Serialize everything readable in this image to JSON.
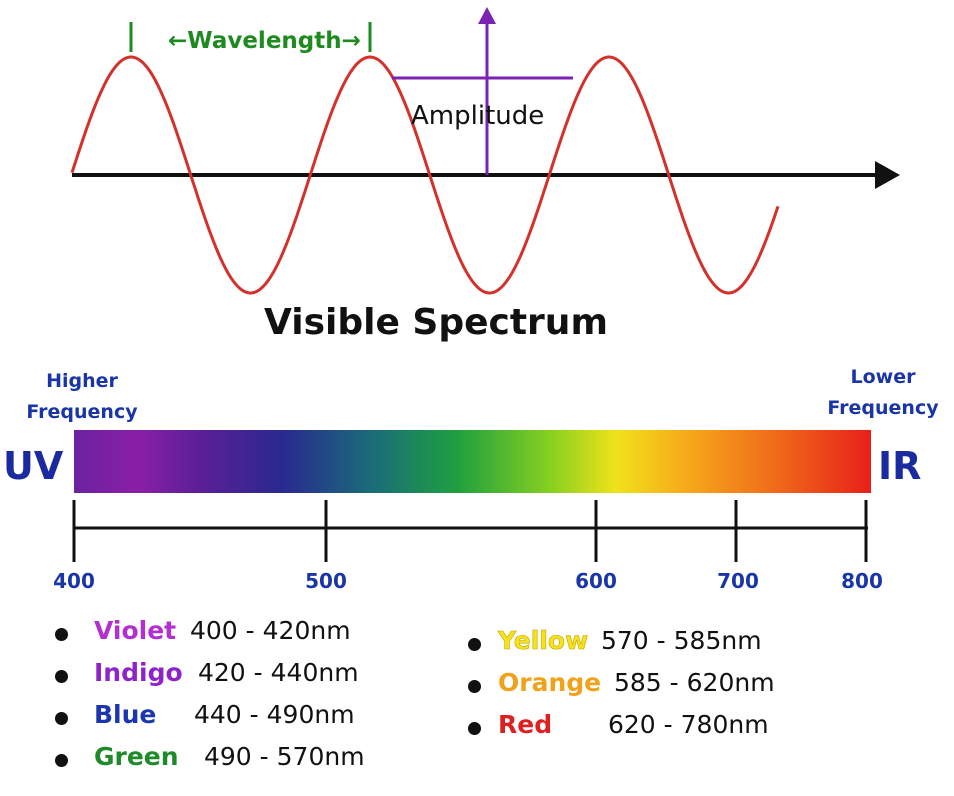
{
  "wave": {
    "wavelength_label": "←Wavelength→",
    "amplitude_label": "Amplitude",
    "wave_color": "#d3322b",
    "wavelength_color": "#1f8a1f",
    "amplitude_color": "#7b22b5"
  },
  "title": "Visible Spectrum",
  "spectrum": {
    "left_label": "Higher Frequency",
    "right_label": "Lower Frequency",
    "left_end": "UV",
    "right_end": "IR",
    "ticks": [
      "400",
      "500",
      "600",
      "700",
      "800"
    ]
  },
  "colors": [
    {
      "name": "Violet",
      "range": "400 - 420nm",
      "color": "#b42fd0"
    },
    {
      "name": "Indigo",
      "range": "420 - 440nm",
      "color": "#8e24c8"
    },
    {
      "name": "Blue",
      "range": "440 - 490nm",
      "color": "#1c36b0"
    },
    {
      "name": "Green",
      "range": "490 - 570nm",
      "color": "#1f8a2a"
    },
    {
      "name": "Yellow",
      "range": "570 - 585nm",
      "color": "#f4e21a"
    },
    {
      "name": "Orange",
      "range": "585 - 620nm",
      "color": "#f0a21a"
    },
    {
      "name": "Red",
      "range": "620 - 780nm",
      "color": "#e02020"
    }
  ]
}
